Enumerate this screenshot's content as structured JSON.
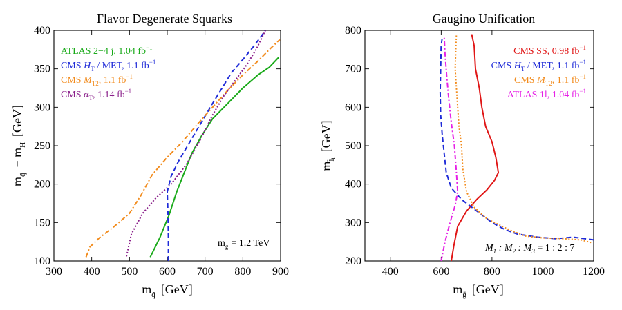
{
  "chart_data": [
    {
      "type": "line",
      "title": "Flavor Degenerate Squarks",
      "xlabel_main": "m",
      "xlabel_sub": "q̃",
      "xlabel_unit": "[GeV]",
      "ylabel_main": "m",
      "ylabel_sub1": "q̃",
      "ylabel_mid": "− m",
      "ylabel_sub2": "H̃",
      "ylabel_unit": "[GeV]",
      "xlim": [
        300,
        900
      ],
      "ylim": [
        100,
        400
      ],
      "xticks": [
        "300",
        "400",
        "500",
        "600",
        "700",
        "800",
        "900"
      ],
      "yticks": [
        "100",
        "150",
        "200",
        "250",
        "300",
        "350",
        "400"
      ],
      "annotation": {
        "main": "m",
        "sub": "g̃",
        "rest": "= 1.2 TeV"
      },
      "series": [
        {
          "name": "ATLAS 2−4 j,  1.04 fb",
          "sup": "−1",
          "color": "#1aaa1a",
          "dash": "solid",
          "points": [
            [
              555,
              105
            ],
            [
              580,
              130
            ],
            [
              605,
              160
            ],
            [
              625,
              190
            ],
            [
              645,
              215
            ],
            [
              665,
              240
            ],
            [
              690,
              262
            ],
            [
              720,
              285
            ],
            [
              760,
              305
            ],
            [
              800,
              325
            ],
            [
              840,
              342
            ],
            [
              870,
              352
            ],
            [
              895,
              365
            ]
          ]
        },
        {
          "name": "CMS H/MET,  1.1 fb",
          "label_parts": [
            "CMS ",
            "H",
            "T",
            " / MET,  1.1 fb"
          ],
          "sup": "−1",
          "color": "#1f2bd8",
          "dash": "dashed",
          "points": [
            [
              603,
              100
            ],
            [
              603,
              130
            ],
            [
              602,
              160
            ],
            [
              600,
              190
            ],
            [
              610,
              210
            ],
            [
              630,
              230
            ],
            [
              660,
              255
            ],
            [
              690,
              280
            ],
            [
              720,
              305
            ],
            [
              745,
              325
            ],
            [
              770,
              345
            ],
            [
              800,
              362
            ],
            [
              830,
              380
            ],
            [
              860,
              400
            ]
          ]
        },
        {
          "name": "CMS M,  1.1 fb",
          "label_parts": [
            "CMS ",
            "M",
            "T2",
            ",  1.1 fb"
          ],
          "sup": "−1",
          "color": "#f28c1e",
          "dash": "dotdash",
          "points": [
            [
              385,
              105
            ],
            [
              395,
              118
            ],
            [
              420,
              130
            ],
            [
              460,
              145
            ],
            [
              500,
              162
            ],
            [
              530,
              185
            ],
            [
              560,
              212
            ],
            [
              600,
              235
            ],
            [
              640,
              255
            ],
            [
              680,
              278
            ],
            [
              720,
              300
            ],
            [
              760,
              322
            ],
            [
              800,
              342
            ],
            [
              840,
              360
            ],
            [
              870,
              375
            ],
            [
              898,
              388
            ]
          ]
        },
        {
          "name": "CMS α,  1.14 fb",
          "label_parts": [
            "CMS ",
            "α",
            "T",
            ",  1.14 fb"
          ],
          "sup": "−1",
          "color": "#8a1f8a",
          "dash": "dotted",
          "points": [
            [
              492,
              106
            ],
            [
              505,
              135
            ],
            [
              535,
              162
            ],
            [
              570,
              182
            ],
            [
              610,
              200
            ],
            [
              650,
              225
            ],
            [
              690,
              260
            ],
            [
              720,
              290
            ],
            [
              750,
              315
            ],
            [
              780,
              335
            ],
            [
              810,
              355
            ],
            [
              835,
              375
            ],
            [
              860,
              400
            ]
          ]
        }
      ]
    },
    {
      "type": "line",
      "title": "Gaugino Unification",
      "xlabel_main": "m",
      "xlabel_sub": "g̃",
      "xlabel_unit": "[GeV]",
      "ylabel_main": "m",
      "ylabel_sub1": "l̃",
      "ylabel_sub1b": "i",
      "ylabel_unit": "[GeV]",
      "xlim": [
        300,
        1200
      ],
      "ylim": [
        200,
        800
      ],
      "xticks": [
        "400",
        "600",
        "800",
        "1000",
        "1200"
      ],
      "yticks": [
        "200",
        "300",
        "400",
        "500",
        "600",
        "700",
        "800"
      ],
      "annotation": {
        "text": "M1 : M2 : M3 = 1 : 2 : 7",
        "parts": [
          "M",
          "1",
          " : M",
          "2",
          " : M",
          "3",
          "  =  1 : 2 : 7"
        ]
      },
      "series": [
        {
          "name": "CMS SS,  0.98 fb",
          "sup": "−1",
          "color": "#e01616",
          "dash": "solid",
          "points": [
            [
              640,
              200
            ],
            [
              650,
              240
            ],
            [
              665,
              290
            ],
            [
              700,
              330
            ],
            [
              740,
              360
            ],
            [
              780,
              385
            ],
            [
              810,
              410
            ],
            [
              825,
              430
            ],
            [
              815,
              470
            ],
            [
              800,
              510
            ],
            [
              775,
              550
            ],
            [
              760,
              600
            ],
            [
              750,
              650
            ],
            [
              735,
              700
            ],
            [
              730,
              760
            ],
            [
              720,
              790
            ]
          ]
        },
        {
          "name": "CMS H/MET,  1.1 fb",
          "label_parts": [
            "CMS ",
            "H",
            "T",
            " / MET,  1.1 fb"
          ],
          "sup": "−1",
          "color": "#1f2bd8",
          "dash": "dashed",
          "points": [
            [
              1200,
              255
            ],
            [
              1120,
              262
            ],
            [
              1050,
              258
            ],
            [
              980,
              262
            ],
            [
              900,
              270
            ],
            [
              850,
              282
            ],
            [
              800,
              300
            ],
            [
              740,
              330
            ],
            [
              680,
              360
            ],
            [
              640,
              390
            ],
            [
              620,
              430
            ],
            [
              612,
              480
            ],
            [
              604,
              530
            ],
            [
              598,
              580
            ],
            [
              596,
              640
            ],
            [
              598,
              700
            ],
            [
              600,
              760
            ],
            [
              605,
              785
            ]
          ]
        },
        {
          "name": "CMS M,  1.1 fb",
          "label_parts": [
            "CMS ",
            "M",
            "T2",
            ",  1.1 fb"
          ],
          "sup": "−1",
          "color": "#f28c1e",
          "dash": "dotted",
          "points": [
            [
              1190,
              248
            ],
            [
              1150,
              255
            ],
            [
              1080,
              258
            ],
            [
              1000,
              260
            ],
            [
              930,
              265
            ],
            [
              880,
              278
            ],
            [
              840,
              290
            ],
            [
              780,
              310
            ],
            [
              730,
              340
            ],
            [
              700,
              380
            ],
            [
              685,
              440
            ],
            [
              680,
              500
            ],
            [
              670,
              550
            ],
            [
              665,
              600
            ],
            [
              660,
              650
            ],
            [
              655,
              700
            ],
            [
              658,
              760
            ],
            [
              660,
              790
            ]
          ]
        },
        {
          "name": "ATLAS 1l,  1.04 fb",
          "sup": "−1",
          "color": "#e622e6",
          "dash": "dotdash",
          "points": [
            [
              600,
              200
            ],
            [
              615,
              250
            ],
            [
              635,
              300
            ],
            [
              655,
              345
            ],
            [
              665,
              380
            ],
            [
              660,
              430
            ],
            [
              652,
              500
            ],
            [
              640,
              560
            ],
            [
              630,
              620
            ],
            [
              622,
              680
            ],
            [
              615,
              740
            ],
            [
              612,
              785
            ]
          ]
        }
      ]
    }
  ]
}
